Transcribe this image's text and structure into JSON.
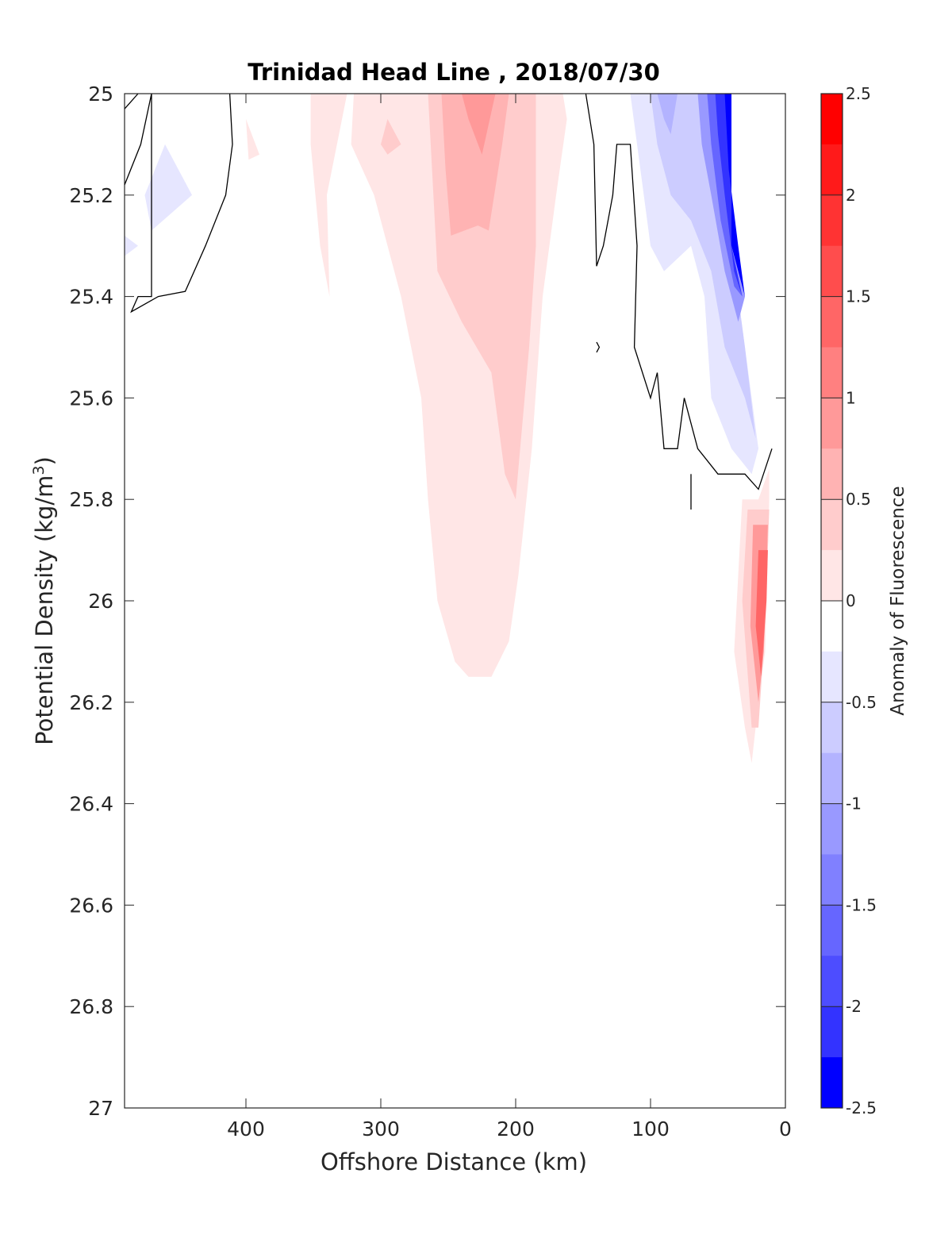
{
  "chart_data": {
    "type": "heatmap",
    "subtype": "filled contour section plot",
    "title": "Trinidad Head Line , 2018/07/30",
    "xlabel": "Offshore Distance (km)",
    "ylabel_main": "Potential Density (kg/m",
    "ylabel_sup": "3",
    "ylabel_close": ")",
    "x_axis": {
      "range": [
        490,
        0
      ],
      "reversed": true,
      "ticks": [
        400,
        300,
        200,
        100,
        0
      ],
      "tick_labels": [
        "400",
        "300",
        "200",
        "100",
        "0"
      ]
    },
    "y_axis": {
      "range": [
        25,
        27
      ],
      "reversed": true,
      "ticks": [
        25,
        25.2,
        25.4,
        25.6,
        25.8,
        26,
        26.2,
        26.4,
        26.6,
        26.8,
        27
      ],
      "tick_labels": [
        "25",
        "25.2",
        "25.4",
        "25.6",
        "25.8",
        "26",
        "26.2",
        "26.4",
        "26.6",
        "26.8",
        "27"
      ]
    },
    "colorbar": {
      "label": "Anomaly of Fluorescence",
      "range": [
        -2.5,
        2.5
      ],
      "ticks": [
        2.5,
        2,
        1.5,
        1,
        0.5,
        0,
        -0.5,
        -1,
        -1.5,
        -2,
        -2.5
      ],
      "tick_labels": [
        "2.5",
        "2",
        "1.5",
        "1",
        "0.5",
        "0",
        "-0.5",
        "-1",
        "-1.5",
        "-2",
        "-2.5"
      ],
      "levels": [
        {
          "from": 2.25,
          "to": 2.5,
          "color": "#ff0000"
        },
        {
          "from": 2.0,
          "to": 2.25,
          "color": "#ff1a1a"
        },
        {
          "from": 1.75,
          "to": 2.0,
          "color": "#ff3333"
        },
        {
          "from": 1.5,
          "to": 1.75,
          "color": "#ff4d4d"
        },
        {
          "from": 1.25,
          "to": 1.5,
          "color": "#ff6666"
        },
        {
          "from": 1.0,
          "to": 1.25,
          "color": "#ff8080"
        },
        {
          "from": 0.75,
          "to": 1.0,
          "color": "#ff9999"
        },
        {
          "from": 0.5,
          "to": 0.75,
          "color": "#ffb3b3"
        },
        {
          "from": 0.25,
          "to": 0.5,
          "color": "#ffcccc"
        },
        {
          "from": 0.0,
          "to": 0.25,
          "color": "#ffe6e6"
        },
        {
          "from": -0.25,
          "to": 0.0,
          "color": "#ffffff"
        },
        {
          "from": -0.5,
          "to": -0.25,
          "color": "#e6e6ff"
        },
        {
          "from": -0.75,
          "to": -0.5,
          "color": "#ccccff"
        },
        {
          "from": -1.0,
          "to": -0.75,
          "color": "#b3b3ff"
        },
        {
          "from": -1.25,
          "to": -1.0,
          "color": "#9999ff"
        },
        {
          "from": -1.5,
          "to": -1.25,
          "color": "#8080ff"
        },
        {
          "from": -1.75,
          "to": -1.5,
          "color": "#6666ff"
        },
        {
          "from": -2.0,
          "to": -1.75,
          "color": "#4d4dff"
        },
        {
          "from": -2.25,
          "to": -2.0,
          "color": "#3333ff"
        },
        {
          "from": -2.5,
          "to": -2.25,
          "color": "#0000ff"
        }
      ]
    },
    "regions": [
      {
        "name": "central-positive-plume",
        "value": 0.25,
        "color": "#ffe6e6",
        "points": [
          [
            282,
            25
          ],
          [
            320,
            25
          ],
          [
            322,
            25.1
          ],
          [
            305,
            25.2
          ],
          [
            285,
            25.4
          ],
          [
            270,
            25.6
          ],
          [
            265,
            25.8
          ],
          [
            258,
            26
          ],
          [
            245,
            26.12
          ],
          [
            235,
            26.15
          ],
          [
            218,
            26.15
          ],
          [
            205,
            26.08
          ],
          [
            198,
            25.95
          ],
          [
            188,
            25.7
          ],
          [
            180,
            25.4
          ],
          [
            170,
            25.2
          ],
          [
            162,
            25.05
          ],
          [
            165,
            25
          ]
        ]
      },
      {
        "name": "positive-band-offshore",
        "value": 0.25,
        "color": "#ffe6e6",
        "points": [
          [
            352,
            25
          ],
          [
            325,
            25
          ],
          [
            340,
            25.2
          ],
          [
            338,
            25.4
          ],
          [
            345,
            25.3
          ],
          [
            352,
            25.1
          ]
        ]
      },
      {
        "name": "positive-patch-far-offshore",
        "value": 0.25,
        "color": "#ffe6e6",
        "points": [
          [
            400,
            25.05
          ],
          [
            390,
            25.12
          ],
          [
            398,
            25.13
          ],
          [
            400,
            25.05
          ]
        ]
      },
      {
        "name": "central-mid-positive",
        "value": 0.5,
        "color": "#ffcccc",
        "points": [
          [
            265,
            25
          ],
          [
            185,
            25
          ],
          [
            185,
            25.3
          ],
          [
            190,
            25.5
          ],
          [
            200,
            25.8
          ],
          [
            208,
            25.75
          ],
          [
            218,
            25.55
          ],
          [
            240,
            25.45
          ],
          [
            258,
            25.35
          ],
          [
            262,
            25.15
          ]
        ]
      },
      {
        "name": "central-core-positive",
        "value": 0.75,
        "color": "#ffb3b3",
        "points": [
          [
            255,
            25
          ],
          [
            205,
            25
          ],
          [
            210,
            25.1
          ],
          [
            220,
            25.27
          ],
          [
            228,
            25.26
          ],
          [
            248,
            25.28
          ],
          [
            252,
            25.15
          ]
        ]
      },
      {
        "name": "central-peak-positive",
        "value": 1.0,
        "color": "#ff9999",
        "points": [
          [
            240,
            25
          ],
          [
            215,
            25
          ],
          [
            225,
            25.12
          ],
          [
            235,
            25.05
          ]
        ]
      },
      {
        "name": "small-positive-blob",
        "value": 0.5,
        "color": "#ffcccc",
        "points": [
          [
            295,
            25.05
          ],
          [
            285,
            25.1
          ],
          [
            295,
            25.12
          ],
          [
            300,
            25.1
          ]
        ]
      },
      {
        "name": "nearshore-negative-1",
        "value": -0.25,
        "color": "#e6e6ff",
        "points": [
          [
            115,
            25
          ],
          [
            40,
            25
          ],
          [
            40,
            25.3
          ],
          [
            30,
            25.5
          ],
          [
            20,
            25.7
          ],
          [
            25,
            25.75
          ],
          [
            40,
            25.7
          ],
          [
            55,
            25.6
          ],
          [
            60,
            25.4
          ],
          [
            70,
            25.3
          ],
          [
            90,
            25.35
          ],
          [
            100,
            25.3
          ],
          [
            105,
            25.2
          ]
        ]
      },
      {
        "name": "nearshore-negative-2",
        "value": -0.5,
        "color": "#ccccff",
        "points": [
          [
            100,
            25
          ],
          [
            40,
            25
          ],
          [
            40,
            25.3
          ],
          [
            30,
            25.5
          ],
          [
            22,
            25.68
          ],
          [
            30,
            25.6
          ],
          [
            45,
            25.5
          ],
          [
            55,
            25.35
          ],
          [
            70,
            25.25
          ],
          [
            85,
            25.2
          ],
          [
            95,
            25.1
          ]
        ]
      },
      {
        "name": "nearshore-negative-3",
        "value": -0.75,
        "color": "#b3b3ff",
        "points": [
          [
            95,
            25
          ],
          [
            80,
            25
          ],
          [
            85,
            25.08
          ],
          [
            90,
            25.05
          ]
        ]
      },
      {
        "name": "nearshore-negative-4",
        "value": -1.0,
        "color": "#9999ff",
        "points": [
          [
            65,
            25
          ],
          [
            40,
            25
          ],
          [
            40,
            25.3
          ],
          [
            30,
            25.4
          ],
          [
            35,
            25.45
          ],
          [
            45,
            25.35
          ],
          [
            55,
            25.2
          ],
          [
            62,
            25.1
          ]
        ]
      },
      {
        "name": "nearshore-negative-5",
        "value": -1.5,
        "color": "#6666ff",
        "points": [
          [
            58,
            25
          ],
          [
            40,
            25
          ],
          [
            40,
            25.3
          ],
          [
            32,
            25.4
          ],
          [
            38,
            25.38
          ],
          [
            48,
            25.25
          ],
          [
            55,
            25.1
          ]
        ]
      },
      {
        "name": "nearshore-negative-6",
        "value": -2.0,
        "color": "#3333ff",
        "points": [
          [
            52,
            25
          ],
          [
            40,
            25
          ],
          [
            40,
            25.3
          ],
          [
            32,
            25.4
          ],
          [
            38,
            25.35
          ],
          [
            45,
            25.2
          ],
          [
            50,
            25.08
          ]
        ]
      },
      {
        "name": "nearshore-negative-7",
        "value": -2.5,
        "color": "#0000ff",
        "points": [
          [
            45,
            25
          ],
          [
            40,
            25
          ],
          [
            40,
            25.3
          ],
          [
            30,
            25.4
          ],
          [
            35,
            25.3
          ],
          [
            42,
            25.15
          ]
        ]
      },
      {
        "name": "far-offshore-negative-1",
        "value": -0.25,
        "color": "#e6e6ff",
        "points": [
          [
            475,
            25.2
          ],
          [
            460,
            25.1
          ],
          [
            440,
            25.2
          ],
          [
            470,
            25.27
          ]
        ]
      },
      {
        "name": "far-offshore-negative-2",
        "value": -0.25,
        "color": "#e6e6ff",
        "points": [
          [
            490,
            25.28
          ],
          [
            480,
            25.3
          ],
          [
            490,
            25.32
          ]
        ]
      },
      {
        "name": "nearshore-deep-positive-1",
        "value": 0.25,
        "color": "#ffe6e6",
        "points": [
          [
            32,
            25.8
          ],
          [
            38,
            26.1
          ],
          [
            30,
            26.25
          ],
          [
            25,
            26.32
          ],
          [
            20,
            26.2
          ],
          [
            15,
            26.1
          ],
          [
            12,
            25.8
          ],
          [
            12,
            25.74
          ],
          [
            20,
            25.8
          ]
        ]
      },
      {
        "name": "nearshore-deep-positive-2",
        "value": 0.5,
        "color": "#ffcccc",
        "points": [
          [
            28,
            25.82
          ],
          [
            32,
            26.0
          ],
          [
            25,
            26.25
          ],
          [
            20,
            26.25
          ],
          [
            15,
            26.05
          ],
          [
            12,
            25.82
          ]
        ]
      },
      {
        "name": "nearshore-deep-positive-3",
        "value": 1.0,
        "color": "#ff9999",
        "points": [
          [
            24,
            25.85
          ],
          [
            26,
            26.05
          ],
          [
            20,
            26.2
          ],
          [
            16,
            26.1
          ],
          [
            14,
            25.95
          ],
          [
            13,
            25.85
          ]
        ]
      },
      {
        "name": "nearshore-deep-positive-4",
        "value": 1.5,
        "color": "#ff6666",
        "points": [
          [
            20,
            25.9
          ],
          [
            22,
            26.05
          ],
          [
            18,
            26.15
          ],
          [
            14,
            26.0
          ],
          [
            13,
            25.9
          ]
        ]
      }
    ],
    "contour_lines": [
      {
        "name": "zero-contour-offshore-edge",
        "points": [
          [
            490,
            25.03
          ],
          [
            480,
            25
          ]
        ]
      },
      {
        "name": "zero-contour-offshore",
        "points": [
          [
            490,
            25.18
          ],
          [
            478,
            25.1
          ],
          [
            470,
            25
          ],
          [
            470,
            25.4
          ],
          [
            480,
            25.4
          ],
          [
            485,
            25.43
          ],
          [
            465,
            25.4
          ],
          [
            445,
            25.39
          ],
          [
            430,
            25.3
          ],
          [
            415,
            25.2
          ],
          [
            410,
            25.1
          ],
          [
            412,
            25
          ]
        ]
      },
      {
        "name": "zero-contour-nearshore-1",
        "points": [
          [
            148,
            25
          ],
          [
            142,
            25.1
          ],
          [
            140,
            25.34
          ],
          [
            135,
            25.3
          ],
          [
            128,
            25.2
          ],
          [
            125,
            25.1
          ],
          [
            115,
            25.1
          ],
          [
            110,
            25.3
          ],
          [
            112,
            25.5
          ],
          [
            100,
            25.6
          ],
          [
            95,
            25.55
          ],
          [
            90,
            25.7
          ],
          [
            80,
            25.7
          ],
          [
            75,
            25.6
          ],
          [
            65,
            25.7
          ],
          [
            50,
            25.75
          ],
          [
            40,
            25.75
          ],
          [
            30,
            25.75
          ],
          [
            20,
            25.78
          ],
          [
            10,
            25.7
          ]
        ]
      },
      {
        "name": "zero-contour-small-loop",
        "points": [
          [
            140,
            25.49
          ],
          [
            138,
            25.5
          ],
          [
            140,
            25.51
          ]
        ]
      },
      {
        "name": "zero-contour-tick",
        "points": [
          [
            70,
            25.75
          ],
          [
            70,
            25.82
          ]
        ]
      }
    ]
  }
}
